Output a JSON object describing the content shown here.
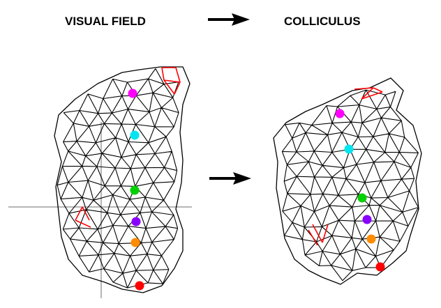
{
  "header": {
    "left_title": "VISUAL FIELD",
    "right_title": "COLLICULUS"
  },
  "colors": {
    "mesh": "#000000",
    "highlight": "#ff0000",
    "axes": "#b5b5b5",
    "markers": [
      "magenta",
      "cyan",
      "green",
      "purple",
      "orange",
      "red"
    ],
    "marker_hex": [
      "#ff00ff",
      "#00e5f0",
      "#00d000",
      "#8a00ff",
      "#ff8c00",
      "#ff0000"
    ]
  },
  "icons": [
    "right-arrow-icon",
    "right-arrow-icon"
  ]
}
